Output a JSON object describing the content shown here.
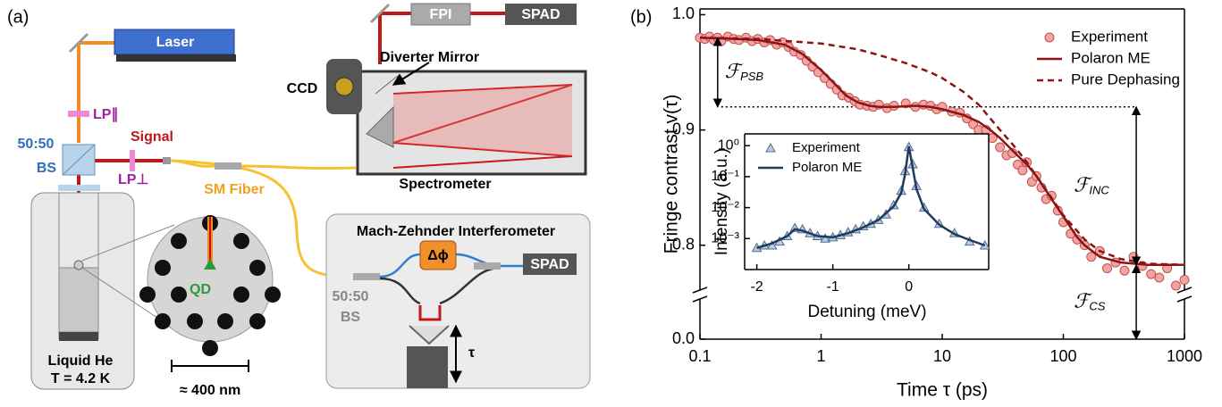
{
  "panel_labels": [
    "(a)",
    "(b)"
  ],
  "diagram": {
    "laser": "Laser",
    "fpi": "FPI",
    "spad_top": "SPAD",
    "ccd": "CCD",
    "diverter_mirror": "Diverter Mirror",
    "spectrometer": "Spectrometer",
    "lp_parallel": "LP∥",
    "lp_perp": "LP⊥",
    "signal": "Signal",
    "bs1_ratio": "50:50",
    "bs1": "BS",
    "sm_fiber": "SM Fiber",
    "mzi_title": "Mach-Zehnder Interferometer",
    "phase": "Δϕ",
    "spad_mzi": "SPAD",
    "bs2_ratio": "50:50",
    "bs2": "BS",
    "delay": "τ",
    "qd": "QD",
    "scale_bar": "≈ 400 nm",
    "cryostat": "Liquid He",
    "temperature": "T = 4.2 K"
  },
  "chart_data": [
    {
      "type": "line",
      "x_label": "Time τ (ps)",
      "y_label": "Fringe contrast v(τ)",
      "xscale": "log",
      "xlim": [
        0.1,
        1000
      ],
      "xticks": [
        0.1,
        1,
        10,
        100,
        1000
      ],
      "yscale": "linear",
      "ylim": [
        0,
        1.005
      ],
      "ybreak": [
        0.02,
        0.765
      ],
      "yticks": [
        {
          "value": 0,
          "label": "0.0"
        },
        0.8,
        0.9,
        {
          "value": 1,
          "label": "1.0"
        }
      ],
      "legend": "upper right",
      "series": [
        {
          "name": "Experiment",
          "mode": "scatter",
          "marker": "circle",
          "color": "#f4a3a3",
          "edge": "#c0504d",
          "x": [
            0.1,
            0.11,
            0.12,
            0.13,
            0.14,
            0.15,
            0.17,
            0.19,
            0.21,
            0.24,
            0.27,
            0.3,
            0.34,
            0.38,
            0.43,
            0.48,
            0.54,
            0.6,
            0.68,
            0.76,
            0.85,
            0.95,
            1.07,
            1.2,
            1.35,
            1.5,
            1.7,
            1.9,
            2.1,
            2.4,
            2.7,
            3,
            3.5,
            4,
            5,
            6,
            7,
            8,
            9,
            10,
            12,
            14,
            16,
            18,
            20,
            23,
            26,
            30,
            34,
            38,
            42,
            46,
            50,
            55,
            60,
            66,
            72,
            80,
            90,
            100,
            115,
            130,
            150,
            170,
            200,
            230,
            270,
            320,
            380,
            450,
            530,
            620,
            720,
            850,
            1000
          ],
          "values": [
            0.98,
            0.979,
            0.981,
            0.978,
            0.98,
            0.977,
            0.981,
            0.979,
            0.978,
            0.98,
            0.977,
            0.979,
            0.976,
            0.978,
            0.974,
            0.976,
            0.972,
            0.968,
            0.965,
            0.96,
            0.955,
            0.95,
            0.945,
            0.94,
            0.935,
            0.93,
            0.928,
            0.925,
            0.922,
            0.921,
            0.92,
            0.922,
            0.919,
            0.921,
            0.923,
            0.92,
            0.922,
            0.921,
            0.918,
            0.92,
            0.916,
            0.915,
            0.91,
            0.905,
            0.9,
            0.9,
            0.893,
            0.885,
            0.878,
            0.88,
            0.87,
            0.865,
            0.872,
            0.855,
            0.86,
            0.85,
            0.84,
            0.843,
            0.83,
            0.82,
            0.81,
            0.805,
            0.8,
            0.79,
            0.795,
            0.78,
            0.785,
            0.778,
            0.79,
            0.782,
            0.775,
            0.772,
            0.78,
            0.765,
            0.77
          ]
        },
        {
          "name": "Polaron ME",
          "mode": "line",
          "dash": false,
          "color": "#8b1414",
          "x": [
            0.1,
            0.2,
            0.3,
            0.5,
            0.7,
            1,
            1.3,
            1.6,
            2,
            2.5,
            3,
            4,
            6,
            8,
            10,
            15,
            20,
            25,
            30,
            40,
            50,
            60,
            80,
            100,
            130,
            150,
            200,
            300,
            500,
            1000
          ],
          "values": [
            0.98,
            0.979,
            0.978,
            0.974,
            0.966,
            0.952,
            0.94,
            0.93,
            0.924,
            0.921,
            0.92,
            0.92,
            0.921,
            0.92,
            0.918,
            0.913,
            0.907,
            0.9,
            0.893,
            0.88,
            0.87,
            0.86,
            0.84,
            0.825,
            0.807,
            0.8,
            0.79,
            0.785,
            0.783,
            0.783
          ]
        },
        {
          "name": "Pure Dephasing",
          "mode": "line",
          "dash": true,
          "color": "#8b1414",
          "x": [
            0.1,
            0.3,
            1,
            2,
            3,
            5,
            8,
            10,
            15,
            20,
            30,
            40,
            50,
            70,
            100,
            150,
            200,
            300,
            500,
            1000
          ],
          "values": [
            0.98,
            0.979,
            0.975,
            0.97,
            0.965,
            0.958,
            0.95,
            0.945,
            0.933,
            0.922,
            0.9,
            0.885,
            0.872,
            0.85,
            0.826,
            0.805,
            0.795,
            0.788,
            0.784,
            0.783
          ]
        }
      ],
      "reference_line": {
        "y": 0.92,
        "x": [
          0.15,
          400
        ]
      },
      "annotations": [
        {
          "symbol": "ℱ",
          "subscript": "PSB",
          "x": 0.14,
          "y": [
            0.98,
            0.92
          ]
        },
        {
          "symbol": "ℱ",
          "subscript": "INC",
          "x": 400,
          "y": [
            0.92,
            0.783
          ]
        },
        {
          "symbol": "ℱ",
          "subscript": "CS",
          "x": 400,
          "y": [
            0.783,
            0
          ]
        }
      ]
    },
    {
      "type": "line",
      "x_label": "Detuning (meV)",
      "y_label": "Intensity (a.u.)",
      "xscale": "linear",
      "xlim": [
        -2.16,
        1.05
      ],
      "xticks": [
        -2,
        -1,
        0
      ],
      "yscale": "log",
      "ylim": [
        0.0001,
        2.4
      ],
      "yticks": [
        {
          "value": 1,
          "label": "10⁰"
        },
        {
          "value": 0.1,
          "label": "10⁻¹"
        },
        {
          "value": 0.01,
          "label": "10⁻²"
        },
        {
          "value": 0.001,
          "label": "10⁻³"
        }
      ],
      "legend": "upper left",
      "series": [
        {
          "name": "Experiment",
          "mode": "scatter",
          "marker": "triangle",
          "color": "#b9cde2",
          "edge": "#4d6b8c",
          "x": [
            -2,
            -1.9,
            -1.8,
            -1.7,
            -1.6,
            -1.5,
            -1.4,
            -1.3,
            -1.2,
            -1.1,
            -1,
            -0.9,
            -0.8,
            -0.7,
            -0.6,
            -0.5,
            -0.4,
            -0.3,
            -0.2,
            -0.1,
            -0.05,
            0,
            0.05,
            0.1,
            0.2,
            0.4,
            0.6,
            0.8,
            1.0
          ],
          "values": [
            0.0005,
            0.0006,
            0.0006,
            0.0008,
            0.0012,
            0.0022,
            0.002,
            0.0015,
            0.0012,
            0.001,
            0.0011,
            0.0013,
            0.0016,
            0.002,
            0.0025,
            0.003,
            0.004,
            0.006,
            0.012,
            0.035,
            0.15,
            0.9,
            0.25,
            0.05,
            0.01,
            0.003,
            0.0015,
            0.0008,
            0.0006
          ]
        },
        {
          "name": "Polaron ME",
          "mode": "line",
          "dash": false,
          "color": "#1f3a5c",
          "x": [
            -2,
            -1.8,
            -1.6,
            -1.5,
            -1.4,
            -1.2,
            -1,
            -0.8,
            -0.6,
            -0.4,
            -0.2,
            -0.1,
            -0.05,
            0,
            0.05,
            0.1,
            0.2,
            0.4,
            0.6,
            0.8,
            1.0
          ],
          "values": [
            0.0005,
            0.0007,
            0.0012,
            0.002,
            0.0018,
            0.0012,
            0.0011,
            0.0015,
            0.0023,
            0.004,
            0.011,
            0.03,
            0.12,
            0.95,
            0.2,
            0.04,
            0.009,
            0.0028,
            0.0014,
            0.0009,
            0.0006
          ]
        }
      ]
    }
  ]
}
